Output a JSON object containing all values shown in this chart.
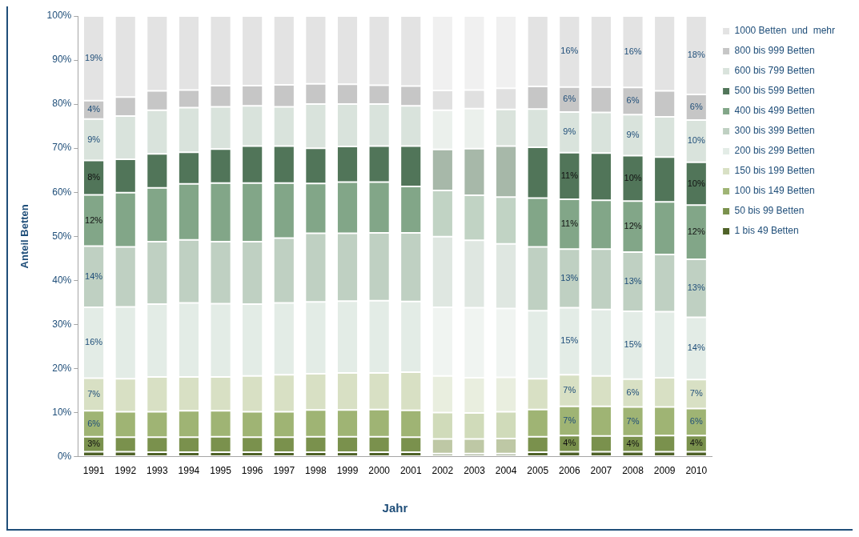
{
  "chart_data": {
    "type": "bar",
    "stacked": true,
    "xlabel": "Jahr",
    "ylabel": "Anteil Betten",
    "legend": "right",
    "grid": false,
    "categories": [
      "1991",
      "1992",
      "1993",
      "1994",
      "1995",
      "1996",
      "1997",
      "1998",
      "1999",
      "2000",
      "2001",
      "2002",
      "2003",
      "2004",
      "2005",
      "2006",
      "2007",
      "2008",
      "2009",
      "2010"
    ],
    "ylim": [
      0,
      100
    ],
    "yticks": [
      {
        "value": 0,
        "label": "0%"
      },
      {
        "value": 10,
        "label": "10%"
      },
      {
        "value": 20,
        "label": "20%"
      },
      {
        "value": 30,
        "label": "30%"
      },
      {
        "value": 40,
        "label": "40%"
      },
      {
        "value": 50,
        "label": "50%"
      },
      {
        "value": 60,
        "label": "60%"
      },
      {
        "value": 70,
        "label": "70%"
      },
      {
        "value": 80,
        "label": "80%"
      },
      {
        "value": 90,
        "label": "90%"
      },
      {
        "value": 100,
        "label": "100%"
      }
    ],
    "series": [
      {
        "name": "1 bis 49 Betten",
        "colors": [
          "#4f6228",
          "#4f6228",
          "#4f6228",
          "#4f6228",
          "#4f6228",
          "#4f6228",
          "#4f6228",
          "#4f6228",
          "#4f6228",
          "#4f6228",
          "#4f6228",
          "#a9b39a",
          "#a9b39a",
          "#a9b39a",
          "#4f6228",
          "#4f6228",
          "#4f6228",
          "#4f6228",
          "#4f6228",
          "#4f6228"
        ],
        "values": [
          1.1,
          1.1,
          1.0,
          1.0,
          1.0,
          1.0,
          1.0,
          1.0,
          1.0,
          1.0,
          1.0,
          0.7,
          0.7,
          0.7,
          1.0,
          1.1,
          1.1,
          1.1,
          1.1,
          1.1
        ]
      },
      {
        "name": "50 bis 99 Betten",
        "colors": [
          "#7a914d",
          "#7a914d",
          "#7a914d",
          "#7a914d",
          "#7a914d",
          "#7a914d",
          "#7a914d",
          "#7a914d",
          "#7a914d",
          "#7a914d",
          "#7a914d",
          "#bec8a5",
          "#bec8a5",
          "#bec8a5",
          "#7a914d",
          "#7a914d",
          "#7a914d",
          "#7a914d",
          "#7a914d",
          "#7a914d"
        ],
        "values": [
          3.4,
          3.3,
          3.4,
          3.4,
          3.5,
          3.4,
          3.4,
          3.5,
          3.5,
          3.5,
          3.4,
          3.3,
          3.3,
          3.4,
          3.5,
          3.7,
          3.6,
          3.6,
          3.7,
          3.7
        ],
        "value_labels": [
          "3%",
          null,
          null,
          null,
          null,
          null,
          null,
          null,
          null,
          null,
          null,
          null,
          null,
          null,
          null,
          "4%",
          null,
          "4%",
          null,
          "4%"
        ]
      },
      {
        "name": "100 bis 149 Betten",
        "colors": [
          "#9fb474",
          "#9fb474",
          "#9fb474",
          "#9fb474",
          "#9fb474",
          "#9fb474",
          "#9fb474",
          "#9fb474",
          "#9fb474",
          "#9fb474",
          "#9fb474",
          "#d0dbba",
          "#d0dbba",
          "#d0dbba",
          "#9fb474",
          "#9fb474",
          "#9fb474",
          "#9fb474",
          "#9fb474",
          "#9fb474"
        ],
        "values": [
          5.9,
          5.8,
          5.8,
          6.0,
          5.9,
          5.8,
          5.8,
          6.1,
          6.1,
          6.2,
          6.1,
          6.0,
          5.9,
          6.1,
          6.2,
          6.6,
          6.7,
          6.6,
          6.5,
          6.1
        ],
        "value_labels": [
          "6%",
          null,
          null,
          null,
          null,
          null,
          null,
          null,
          null,
          null,
          null,
          null,
          null,
          null,
          null,
          "7%",
          null,
          "7%",
          null,
          "6%"
        ]
      },
      {
        "name": "150 bis 199 Betten",
        "colors": [
          "#d8e0c4",
          "#d8e0c4",
          "#d8e0c4",
          "#d8e0c4",
          "#d8e0c4",
          "#d8e0c4",
          "#d8e0c4",
          "#d8e0c4",
          "#d8e0c4",
          "#d8e0c4",
          "#d8e0c4",
          "#e9eedf",
          "#e9eedf",
          "#e9eedf",
          "#d8e0c4",
          "#d8e0c4",
          "#d8e0c4",
          "#d8e0c4",
          "#d8e0c4",
          "#d8e0c4"
        ],
        "values": [
          7.4,
          7.5,
          7.9,
          7.7,
          7.7,
          8.1,
          8.4,
          8.2,
          8.4,
          8.3,
          8.7,
          8.3,
          8.0,
          7.8,
          7.0,
          7.2,
          6.9,
          6.3,
          6.6,
          6.6
        ],
        "value_labels": [
          "7%",
          null,
          null,
          null,
          null,
          null,
          null,
          null,
          null,
          null,
          null,
          null,
          null,
          null,
          null,
          "7%",
          null,
          "6%",
          null,
          "7%"
        ]
      },
      {
        "name": "200 bis 299 Betten",
        "colors": [
          "#e3ece6",
          "#e3ece6",
          "#e3ece6",
          "#e3ece6",
          "#e3ece6",
          "#e3ece6",
          "#e3ece6",
          "#e3ece6",
          "#e3ece6",
          "#e3ece6",
          "#e3ece6",
          "#f0f4f1",
          "#f0f4f1",
          "#f0f4f1",
          "#e3ece6",
          "#e3ece6",
          "#e3ece6",
          "#e3ece6",
          "#e3ece6",
          "#e3ece6"
        ],
        "values": [
          16.1,
          16.3,
          16.5,
          16.8,
          16.6,
          16.3,
          16.3,
          16.3,
          16.3,
          16.4,
          16.0,
          15.6,
          15.9,
          15.6,
          15.4,
          15.2,
          15.1,
          15.4,
          15.0,
          14.1
        ],
        "value_labels": [
          "16%",
          null,
          null,
          null,
          null,
          null,
          null,
          null,
          null,
          null,
          null,
          null,
          null,
          null,
          null,
          "15%",
          null,
          "15%",
          null,
          "14%"
        ]
      },
      {
        "name": "300 bis 399 Betten",
        "colors": [
          "#bfd0c2",
          "#bfd0c2",
          "#bfd0c2",
          "#bfd0c2",
          "#bfd0c2",
          "#bfd0c2",
          "#bfd0c2",
          "#bfd0c2",
          "#bfd0c2",
          "#bfd0c2",
          "#bfd0c2",
          "#dfe7e1",
          "#dfe7e1",
          "#dfe7e1",
          "#bfd0c2",
          "#bfd0c2",
          "#bfd0c2",
          "#bfd0c2",
          "#bfd0c2",
          "#bfd0c2"
        ],
        "values": [
          13.9,
          13.6,
          14.2,
          14.3,
          14.1,
          14.2,
          14.7,
          15.6,
          15.4,
          15.4,
          15.6,
          16.0,
          15.3,
          14.7,
          14.5,
          13.3,
          13.7,
          13.4,
          13.0,
          13.2
        ],
        "value_labels": [
          "14%",
          null,
          null,
          null,
          null,
          null,
          null,
          null,
          null,
          null,
          null,
          null,
          null,
          null,
          null,
          "13%",
          null,
          "13%",
          null,
          "13%"
        ]
      },
      {
        "name": "400 bis 499 Betten",
        "colors": [
          "#82a688",
          "#82a688",
          "#82a688",
          "#82a688",
          "#82a688",
          "#82a688",
          "#82a688",
          "#82a688",
          "#82a688",
          "#82a688",
          "#82a688",
          "#c1d3c4",
          "#c1d3c4",
          "#c1d3c4",
          "#82a688",
          "#82a688",
          "#82a688",
          "#82a688",
          "#82a688",
          "#82a688"
        ],
        "values": [
          11.6,
          12.3,
          12.2,
          12.7,
          13.3,
          13.3,
          12.5,
          11.3,
          11.6,
          11.5,
          10.5,
          10.5,
          10.2,
          10.6,
          11.1,
          11.3,
          11.1,
          11.6,
          11.9,
          12.3
        ],
        "value_labels": [
          "12%",
          null,
          null,
          null,
          null,
          null,
          null,
          null,
          null,
          null,
          null,
          null,
          null,
          null,
          null,
          "11%",
          null,
          "12%",
          null,
          "12%"
        ]
      },
      {
        "name": "500 bis 599 Betten",
        "colors": [
          "#517559",
          "#517559",
          "#517559",
          "#517559",
          "#517559",
          "#517559",
          "#517559",
          "#517559",
          "#517559",
          "#517559",
          "#517559",
          "#a7b8a9",
          "#a7b8a9",
          "#a7b8a9",
          "#517559",
          "#517559",
          "#517559",
          "#517559",
          "#517559",
          "#517559"
        ],
        "values": [
          7.8,
          7.6,
          7.7,
          7.2,
          7.7,
          8.4,
          8.4,
          8.0,
          8.1,
          8.2,
          9.2,
          9.3,
          10.6,
          11.6,
          11.5,
          10.6,
          10.7,
          10.3,
          10.2,
          9.7
        ],
        "value_labels": [
          "8%",
          null,
          null,
          null,
          null,
          null,
          null,
          null,
          null,
          null,
          null,
          null,
          null,
          null,
          null,
          "11%",
          null,
          "10%",
          null,
          "10%"
        ]
      },
      {
        "name": "600 bis 799 Betten",
        "colors": [
          "#d9e3dc",
          "#d9e3dc",
          "#d9e3dc",
          "#d9e3dc",
          "#d9e3dc",
          "#d9e3dc",
          "#d9e3dc",
          "#d9e3dc",
          "#d9e3dc",
          "#d9e3dc",
          "#d9e3dc",
          "#ebf0ec",
          "#ebf0ec",
          "#dae3dc",
          "#d9e3dc",
          "#d9e3dc",
          "#d9e3dc",
          "#d9e3dc",
          "#d9e3dc",
          "#d9e3dc"
        ],
        "values": [
          9.4,
          9.8,
          9.9,
          10.1,
          9.6,
          9.1,
          8.9,
          10.0,
          9.6,
          9.5,
          9.1,
          8.9,
          9.1,
          8.3,
          8.7,
          9.2,
          9.2,
          9.3,
          9.1,
          9.6
        ],
        "value_labels": [
          "9%",
          null,
          null,
          null,
          null,
          null,
          null,
          null,
          null,
          null,
          null,
          null,
          null,
          null,
          null,
          "9%",
          null,
          "9%",
          null,
          "10%"
        ]
      },
      {
        "name": "800 bis 999 Betten",
        "colors": [
          "#c6c6c6",
          "#c6c6c6",
          "#c6c6c6",
          "#c6c6c6",
          "#c6c6c6",
          "#c6c6c6",
          "#c6c6c6",
          "#c6c6c6",
          "#c6c6c6",
          "#c6c6c6",
          "#c6c6c6",
          "#e0e0e0",
          "#e0e0e0",
          "#e0e0e0",
          "#c6c6c6",
          "#c6c6c6",
          "#c6c6c6",
          "#c6c6c6",
          "#c6c6c6",
          "#c6c6c6"
        ],
        "values": [
          4.2,
          4.3,
          4.4,
          4.0,
          4.8,
          4.6,
          5.0,
          4.6,
          4.5,
          4.3,
          4.5,
          4.5,
          4.2,
          4.8,
          5.1,
          5.7,
          5.8,
          6.2,
          5.9,
          5.8
        ],
        "value_labels": [
          "4%",
          null,
          null,
          null,
          null,
          null,
          null,
          null,
          null,
          null,
          null,
          null,
          null,
          null,
          null,
          "6%",
          null,
          "6%",
          null,
          "6%"
        ]
      },
      {
        "name": "1000 Betten  und  mehr",
        "colors": [
          "#e3e3e3",
          "#e3e3e3",
          "#e3e3e3",
          "#e3e3e3",
          "#e3e3e3",
          "#e3e3e3",
          "#e3e3e3",
          "#e3e3e3",
          "#e3e3e3",
          "#e3e3e3",
          "#e3e3e3",
          "#f0f0f0",
          "#f0f0f0",
          "#f0f0f0",
          "#e3e3e3",
          "#e3e3e3",
          "#e3e3e3",
          "#e3e3e3",
          "#e3e3e3",
          "#e3e3e3"
        ],
        "values": [
          19.2,
          18.4,
          17.0,
          16.8,
          15.8,
          15.8,
          15.6,
          15.4,
          15.5,
          15.7,
          15.9,
          16.9,
          16.8,
          16.4,
          16.0,
          16.1,
          16.1,
          16.2,
          17.0,
          17.8
        ],
        "value_labels": [
          "19%",
          null,
          null,
          null,
          null,
          null,
          null,
          null,
          null,
          null,
          null,
          null,
          null,
          null,
          null,
          "16%",
          null,
          "16%",
          null,
          "18%"
        ]
      }
    ]
  }
}
